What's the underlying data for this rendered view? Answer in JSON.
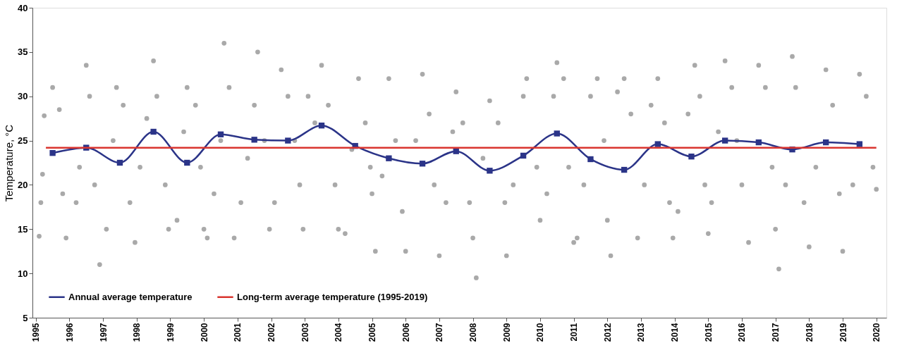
{
  "chart_data": {
    "type": "scatter",
    "ylabel": "Temperature, °C",
    "xlim": [
      1994.9,
      2020.3
    ],
    "ylim": [
      5,
      40
    ],
    "xticks": [
      1995,
      1996,
      1997,
      1998,
      1999,
      2000,
      2001,
      2002,
      2003,
      2004,
      2005,
      2006,
      2007,
      2008,
      2009,
      2010,
      2011,
      2012,
      2013,
      2014,
      2015,
      2016,
      2017,
      2018,
      2019,
      2020
    ],
    "yticks": [
      5,
      10,
      15,
      20,
      25,
      30,
      35,
      40
    ],
    "legend": "bottom left",
    "series": [
      {
        "color": "#a9a9a9",
        "marker": "circle",
        "x": [
          1995.1,
          1995.15,
          1995.2,
          1995.25,
          1995.5,
          1995.7,
          1995.8,
          1995.9,
          1996.2,
          1996.3,
          1996.5,
          1996.6,
          1996.75,
          1996.9,
          1997.1,
          1997.3,
          1997.4,
          1997.6,
          1997.8,
          1997.95,
          1998.1,
          1998.3,
          1998.5,
          1998.6,
          1998.85,
          1998.95,
          1999.2,
          1999.4,
          1999.5,
          1999.75,
          1999.9,
          2000.0,
          2000.1,
          2000.3,
          2000.5,
          2000.6,
          2000.75,
          2000.9,
          2001.1,
          2001.3,
          2001.5,
          2001.6,
          2001.8,
          2001.95,
          2002.1,
          2002.3,
          2002.5,
          2002.7,
          2002.85,
          2002.95,
          2003.1,
          2003.3,
          2003.5,
          2003.7,
          2003.9,
          2004.0,
          2004.2,
          2004.4,
          2004.6,
          2004.8,
          2004.95,
          2005.0,
          2005.1,
          2005.3,
          2005.5,
          2005.7,
          2005.9,
          2006.0,
          2006.3,
          2006.5,
          2006.7,
          2006.85,
          2007.0,
          2007.2,
          2007.4,
          2007.5,
          2007.7,
          2007.9,
          2008.0,
          2008.1,
          2008.3,
          2008.5,
          2008.75,
          2008.95,
          2009.0,
          2009.2,
          2009.5,
          2009.6,
          2009.9,
          2010.0,
          2010.2,
          2010.4,
          2010.5,
          2010.7,
          2010.85,
          2011.0,
          2011.1,
          2011.3,
          2011.5,
          2011.7,
          2011.9,
          2012.0,
          2012.1,
          2012.3,
          2012.5,
          2012.7,
          2012.9,
          2013.1,
          2013.3,
          2013.5,
          2013.7,
          2013.85,
          2013.95,
          2014.1,
          2014.4,
          2014.6,
          2014.75,
          2014.9,
          2015.0,
          2015.1,
          2015.3,
          2015.5,
          2015.7,
          2015.85,
          2016.0,
          2016.2,
          2016.5,
          2016.7,
          2016.9,
          2017.0,
          2017.1,
          2017.3,
          2017.5,
          2017.6,
          2017.85,
          2018.0,
          2018.2,
          2018.5,
          2018.7,
          2018.9,
          2019.0,
          2019.3,
          2019.5,
          2019.7,
          2019.9,
          2020.0
        ],
        "values": [
          14.2,
          18,
          21.2,
          27.8,
          31,
          28.5,
          19,
          14,
          18,
          22,
          33.5,
          30,
          20,
          11,
          15,
          25,
          31,
          29,
          18,
          13.5,
          22,
          27.5,
          34,
          30,
          20,
          15,
          16,
          26,
          31,
          29,
          22,
          15,
          14,
          19,
          25,
          36,
          31,
          14,
          18,
          23,
          29,
          35,
          25,
          15,
          18,
          33,
          30,
          25,
          20,
          15,
          30,
          27,
          33.5,
          29,
          20,
          15,
          14.5,
          24,
          32,
          27,
          22,
          19,
          12.5,
          21,
          32,
          25,
          17,
          12.5,
          25,
          32.5,
          28,
          20,
          12,
          18,
          26,
          30.5,
          27,
          18,
          14,
          9.5,
          23,
          29.5,
          27,
          18,
          12,
          20,
          30,
          32,
          22,
          16,
          19,
          30,
          33.8,
          32,
          22,
          13.5,
          14,
          20,
          30,
          32,
          25,
          16,
          12,
          30.5,
          32,
          28,
          14,
          20,
          29,
          32,
          27,
          18,
          14,
          17,
          28,
          33.5,
          30,
          20,
          14.5,
          18,
          26,
          34,
          31,
          25,
          20,
          13.5,
          33.5,
          31,
          22,
          15,
          10.5,
          20,
          34.5,
          31,
          18,
          13,
          22,
          33,
          29,
          19,
          12.5,
          20,
          32.5,
          30,
          22,
          19.5
        ]
      },
      {
        "type": "line",
        "name": "Annual average temperature",
        "color": "#2b3488",
        "marker": "square",
        "line_style": "solid",
        "x": [
          1995.5,
          1996.5,
          1997.5,
          1998.5,
          1999.5,
          2000.5,
          2001.5,
          2002.5,
          2003.5,
          2004.5,
          2005.5,
          2006.5,
          2007.5,
          2008.5,
          2009.5,
          2010.5,
          2011.5,
          2012.5,
          2013.5,
          2014.5,
          2015.5,
          2016.5,
          2017.5,
          2018.5,
          2019.5
        ],
        "values": [
          23.6,
          24.2,
          22.5,
          26.0,
          22.5,
          25.7,
          25.1,
          25.0,
          26.7,
          24.4,
          23.0,
          22.4,
          23.8,
          21.6,
          23.3,
          25.8,
          22.9,
          21.7,
          24.6,
          23.2,
          25.0,
          24.8,
          24.0,
          24.8,
          24.6
        ]
      },
      {
        "type": "line",
        "name": "Long-term average temperature (1995-2019)",
        "color": "#d9352f",
        "marker": "none",
        "line_style": "solid",
        "x": [
          1995.3,
          2020.0
        ],
        "values": [
          24.2,
          24.2
        ]
      }
    ]
  }
}
